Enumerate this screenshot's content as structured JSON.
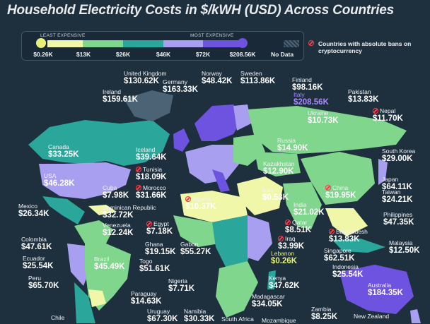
{
  "title": "Household Electricity Costs in $/kWH (USD) Across Countries",
  "legend": {
    "least_label": "LEAST EXPENSIVE",
    "most_label": "MOST EXPENSIVE",
    "ticks": [
      "$0.26K",
      "$13K",
      "$26K",
      "$46K",
      "$72K",
      "$208.56K"
    ],
    "no_data_label": "No Data",
    "colors": [
      "#f0f7a8",
      "#7fd68c",
      "#2aa69a",
      "#a89ff0",
      "#6e53e0"
    ],
    "no_data_color": "#4b6374"
  },
  "ban_note": "Countries with absolute bans on cryptocurrency",
  "chart_data": {
    "type": "choropleth map",
    "title": "Household Electricity Costs in $/kWH (USD) Across Countries",
    "scale_breaks": [
      "$0.26K",
      "$13K",
      "$26K",
      "$46K",
      "$72K",
      "$208.56K"
    ],
    "countries": [
      {
        "name": "United Kingdom",
        "value": "$130.62K"
      },
      {
        "name": "Norway",
        "value": "$48.42K"
      },
      {
        "name": "Sweden",
        "value": "$113.86K"
      },
      {
        "name": "Germany",
        "value": "$163.33K"
      },
      {
        "name": "Ireland",
        "value": "$159.61K"
      },
      {
        "name": "Finland",
        "value": "$98.16K"
      },
      {
        "name": "Italy",
        "value": "$208.56K",
        "highlight": "most expensive"
      },
      {
        "name": "Pakistan",
        "value": "$13.83K"
      },
      {
        "name": "Ukraine",
        "value": "$10.73K"
      },
      {
        "name": "Nepal",
        "value": "$11.70K",
        "ban": true
      },
      {
        "name": "Canada",
        "value": "$33.25K"
      },
      {
        "name": "Iceland",
        "value": "$39.64K"
      },
      {
        "name": "Russia",
        "value": "$14.90K"
      },
      {
        "name": "South Korea",
        "value": "$29.00K"
      },
      {
        "name": "Tunisia",
        "value": "$18.09K",
        "ban": true
      },
      {
        "name": "Kazakhstan",
        "value": "$12.90K"
      },
      {
        "name": "USA",
        "value": "$46.28K"
      },
      {
        "name": "Japan",
        "value": "$64.11K"
      },
      {
        "name": "Cuba",
        "value": "$7.98K"
      },
      {
        "name": "Morocco",
        "value": "$31.66K",
        "ban": true
      },
      {
        "name": "Iran",
        "value": "$0.53K"
      },
      {
        "name": "China",
        "value": "$19.95K",
        "ban": true
      },
      {
        "name": "Taiwan",
        "value": "$24.21K"
      },
      {
        "name": "Mexico",
        "value": "$26.34K"
      },
      {
        "name": "Dominican Republic",
        "value": "$32.72K"
      },
      {
        "name": "Algeria",
        "value": "$10.37K",
        "ban": true
      },
      {
        "name": "India",
        "value": "$21.02K"
      },
      {
        "name": "Philippines",
        "value": "$47.35K"
      },
      {
        "name": "Venezuela",
        "value": "$12.24K"
      },
      {
        "name": "Egypt",
        "value": "$7.18K",
        "ban": true
      },
      {
        "name": "Qatar",
        "value": "$8.51K",
        "ban": true
      },
      {
        "name": "Bangladesh",
        "value": "$13.83K",
        "ban": true
      },
      {
        "name": "Colombia",
        "value": "$47.61K"
      },
      {
        "name": "Iraq",
        "value": "$3.99K",
        "ban": true
      },
      {
        "name": "Malaysia",
        "value": "$12.50K"
      },
      {
        "name": "Ghana",
        "value": "$19.15K"
      },
      {
        "name": "Gabon",
        "value": "$55.27K"
      },
      {
        "name": "Lebanon",
        "value": "$0.26K",
        "highlight": "least expensive"
      },
      {
        "name": "Singapore",
        "value": "$62.51K"
      },
      {
        "name": "Ecuador",
        "value": "$25.54K"
      },
      {
        "name": "Togo",
        "value": "$51.61K"
      },
      {
        "name": "Brazil",
        "value": "$45.49K"
      },
      {
        "name": "Indonesia",
        "value": "$25.54K"
      },
      {
        "name": "Peru",
        "value": "$65.70K"
      },
      {
        "name": "Nigeria",
        "value": "$7.71K"
      },
      {
        "name": "Kenya",
        "value": "$47.62K"
      },
      {
        "name": "Australia",
        "value": "$184.35K"
      },
      {
        "name": "Paraguay",
        "value": "$14.63K"
      },
      {
        "name": "Madagascar",
        "value": "$34.05K"
      },
      {
        "name": "Uruguay",
        "value": "$67.30K"
      },
      {
        "name": "Namibia",
        "value": "$30.33K"
      },
      {
        "name": "Zambia",
        "value": "$8.25K"
      },
      {
        "name": "New Zealand",
        "value": ""
      },
      {
        "name": "Chile",
        "value": ""
      },
      {
        "name": "South Africa",
        "value": ""
      },
      {
        "name": "Mozambique",
        "value": ""
      }
    ]
  }
}
